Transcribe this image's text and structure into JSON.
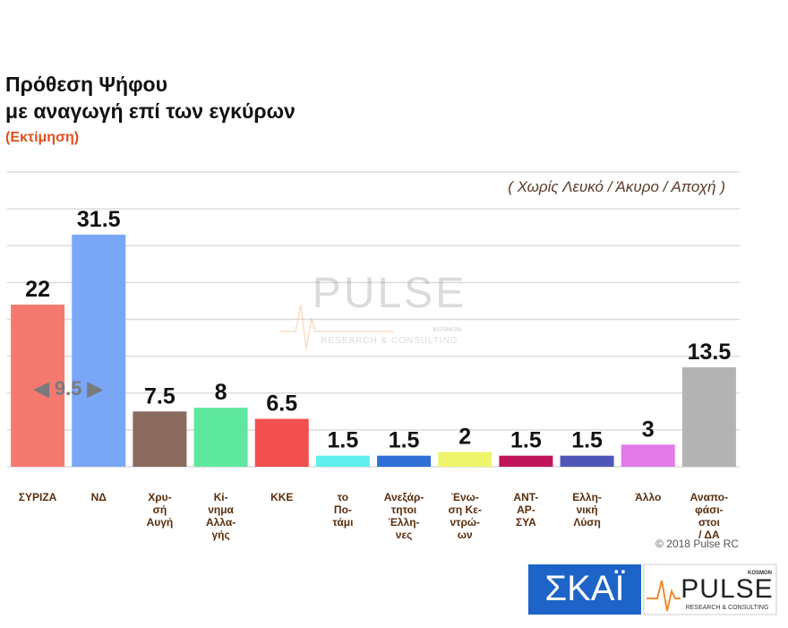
{
  "chart_data": {
    "type": "bar",
    "title_lines": [
      "Πρόθεση Ψήφου",
      "με αναγωγή επί των εγκύρων"
    ],
    "subtitle": "(Εκτίμηση)",
    "note": "( Χωρίς Λευκό / Άκυρο / Αποχή )",
    "annotation": "◀ 9.5 ▶",
    "credit": "© 2018 Pulse RC",
    "watermark": {
      "name": "PULSE",
      "tagline": "RESEARCH & CONSULTING",
      "sub": "KOSMON"
    },
    "logos": {
      "channel": "ΣΚΑΪ",
      "pollster": "PULSE",
      "pollster_tagline": "RESEARCH & CONSULTING",
      "pollster_sub": "KOSMON"
    },
    "categories": [
      "ΣΥΡΙΖΑ",
      "ΝΔ",
      "Χρυ-\nσή\nΑυγή",
      "Κί-\nνημα\nΑλλα-\nγής",
      "ΚΚΕ",
      "το\nΠο-\nτάμι",
      "Ανεξάρ-\nτητοι\nΈλλη-\nνες",
      "Ένω-\nση Κε-\nντρώ-\nων",
      "ΑΝΤ-\nΑΡ-\nΣΥΑ",
      "Ελλη-\nνική\nΛύση",
      "Άλλο",
      "Αναπο-\nφάσι-\nστοι\n/ ΔΑ"
    ],
    "values": [
      22,
      31.5,
      7.5,
      8,
      6.5,
      1.5,
      1.5,
      2,
      1.5,
      1.5,
      3,
      13.5
    ],
    "colors": [
      "#f4796f",
      "#7aa6f7",
      "#8b6a5e",
      "#5ee79e",
      "#f24f4f",
      "#5ff0ee",
      "#2f6fd6",
      "#eef56c",
      "#c0155a",
      "#4f56b8",
      "#e27ae9",
      "#b3b3b3"
    ],
    "ylim": [
      0,
      40
    ],
    "yticks": [
      0,
      5,
      10,
      15,
      20,
      25,
      30,
      35,
      40
    ],
    "grid": true
  }
}
